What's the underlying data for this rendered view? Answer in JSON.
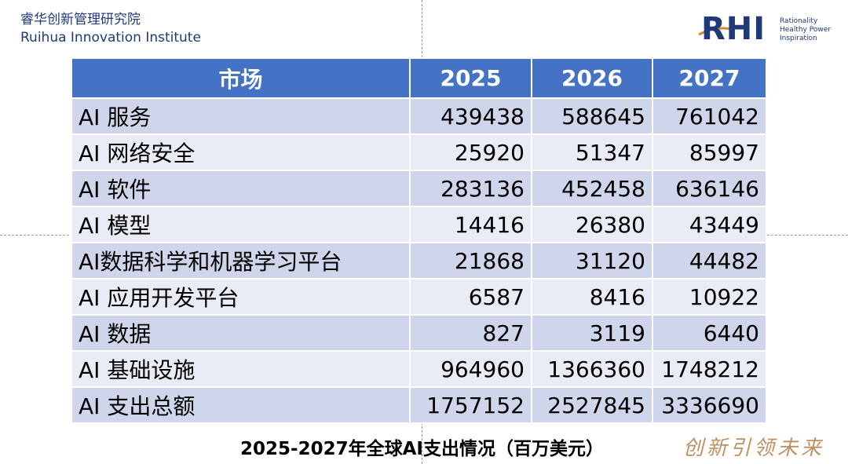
{
  "header": {
    "org_cn": "睿华创新管理研究院",
    "org_en": "Ruihua Innovation Institute",
    "logo": "RHI",
    "tagline": [
      "Rationality",
      "Healthy Power",
      "Inspiration"
    ]
  },
  "table": {
    "columns": [
      "市场",
      "2025",
      "2026",
      "2027"
    ],
    "rows": [
      [
        "AI 服务",
        439438,
        588645,
        761042
      ],
      [
        "AI 网络安全",
        25920,
        51347,
        85997
      ],
      [
        "AI 软件",
        283136,
        452458,
        636146
      ],
      [
        "AI 模型",
        14416,
        26380,
        43449
      ],
      [
        "AI数据科学和机器学习平台",
        21868,
        31120,
        44482
      ],
      [
        "AI 应用开发平台",
        6587,
        8416,
        10922
      ],
      [
        "AI 数据",
        827,
        3119,
        6440
      ],
      [
        "AI 基础设施",
        964960,
        1366360,
        1748212
      ],
      [
        "AI 支出总额",
        1757152,
        2527845,
        3336690
      ]
    ]
  },
  "caption": "2025-2027年全球AI支出情况（百万美元）",
  "slogan": "创新引领未来"
}
